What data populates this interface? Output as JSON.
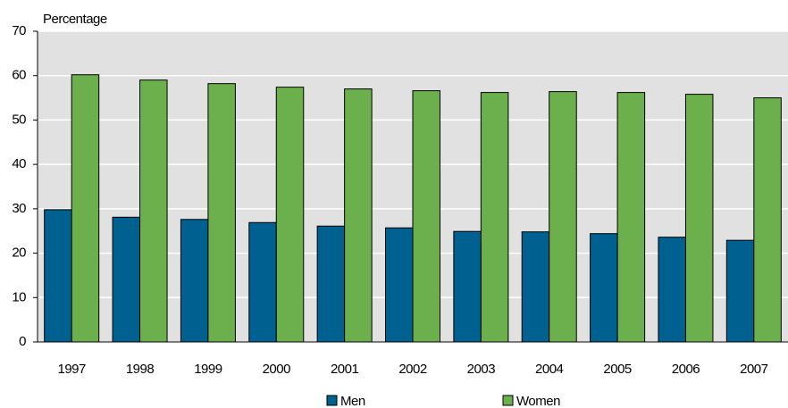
{
  "chart_data": {
    "type": "bar",
    "y_label": "Percentage",
    "categories": [
      "1997",
      "1998",
      "1999",
      "2000",
      "2001",
      "2002",
      "2003",
      "2004",
      "2005",
      "2006",
      "2007"
    ],
    "series": [
      {
        "name": "Men",
        "color": "#00608f",
        "values": [
          29.8,
          28.1,
          27.6,
          26.9,
          26.1,
          25.7,
          24.9,
          24.8,
          24.4,
          23.6,
          22.9
        ]
      },
      {
        "name": "Women",
        "color": "#6cb04e",
        "values": [
          60.2,
          59.0,
          58.2,
          57.4,
          57.0,
          56.6,
          56.2,
          56.4,
          56.2,
          55.8,
          55.0
        ]
      }
    ],
    "ylim": [
      0,
      70
    ],
    "yticks": [
      0,
      10,
      20,
      30,
      40,
      50,
      60,
      70
    ],
    "grid": true,
    "legend": "bottom"
  }
}
